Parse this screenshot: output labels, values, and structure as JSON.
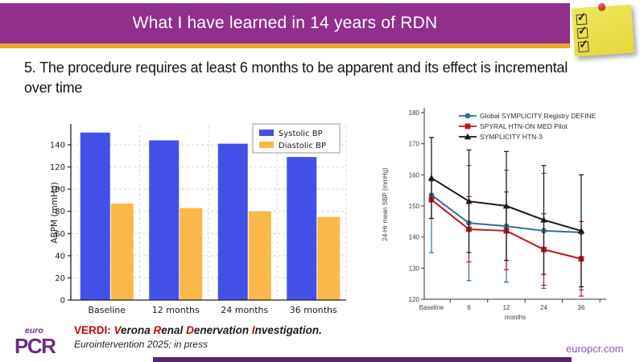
{
  "header": {
    "title": "What I have learned in 14 years of RDN",
    "bg_color": "#90308c",
    "stripe_color": "#e7ac25"
  },
  "sticky_note": {
    "check_glyph": "✓",
    "checks": 3,
    "note_color": "#ece04e",
    "pin_color": "#c81f2e"
  },
  "subtitle": "5. The procedure requires at least 6 months to be apparent and its effect is incremental over time",
  "chart_data": [
    {
      "type": "bar",
      "categories": [
        "Baseline",
        "12 months",
        "24 months",
        "36 months"
      ],
      "series": [
        {
          "name": "Systolic BP",
          "color": "#4350e8",
          "values": [
            151,
            144,
            141,
            129
          ]
        },
        {
          "name": "Diastolic BP",
          "color": "#f8b84a",
          "values": [
            87,
            83,
            80,
            75
          ]
        }
      ],
      "ylabel": "ABPM (mmHg)",
      "yticks": [
        0,
        20,
        40,
        60,
        80,
        100,
        120,
        140
      ],
      "ylim": [
        0,
        158
      ],
      "grid": "dashed",
      "legend_position": "top-right"
    },
    {
      "type": "line",
      "categories": [
        "Baseline",
        "6",
        "12",
        "24",
        "36"
      ],
      "xlabel": "months",
      "ylabel": "24-Hr mean SBP (mmHg)",
      "yticks": [
        120,
        130,
        140,
        150,
        160,
        170,
        180
      ],
      "ylim": [
        120,
        180
      ],
      "series": [
        {
          "name": "Global SYMPLICITY Registry DEFINE",
          "color": "#2e7095",
          "marker": "circle",
          "values": [
            153.5,
            144.5,
            143.5,
            142,
            141.5
          ],
          "err": [
            18.5,
            18.5,
            18,
            18.5,
            18.5
          ]
        },
        {
          "name": "SPYRAL HTN-ON MED Pilot",
          "color": "#bf1722",
          "marker": "square",
          "values": [
            152,
            142.5,
            142,
            136,
            133
          ],
          "err": [
            6,
            10.5,
            12.5,
            11.5,
            12
          ]
        },
        {
          "name": "SYMPLICITY HTN-3",
          "color": "#1a1a1a",
          "marker": "triangle",
          "values": [
            159,
            151.5,
            150,
            145.5,
            142
          ],
          "err": [
            13,
            16.5,
            17.5,
            17.5,
            18
          ]
        }
      ],
      "legend_position": "top"
    }
  ],
  "citation": {
    "acronym": "VERDI: ",
    "words": [
      {
        "initial": "V",
        "rest": "erona "
      },
      {
        "initial": "R",
        "rest": "enal "
      },
      {
        "initial": "D",
        "rest": "enervation "
      },
      {
        "initial": "I",
        "rest": "nvestigation."
      }
    ],
    "source": "Eurointervention 2025; in press",
    "accent_color": "#cc0000"
  },
  "logo": {
    "top": "euro",
    "bottom": "PCR",
    "color": "#6b2c87"
  },
  "footer": {
    "website": "europcr.com",
    "bar_color": "#57266b"
  }
}
